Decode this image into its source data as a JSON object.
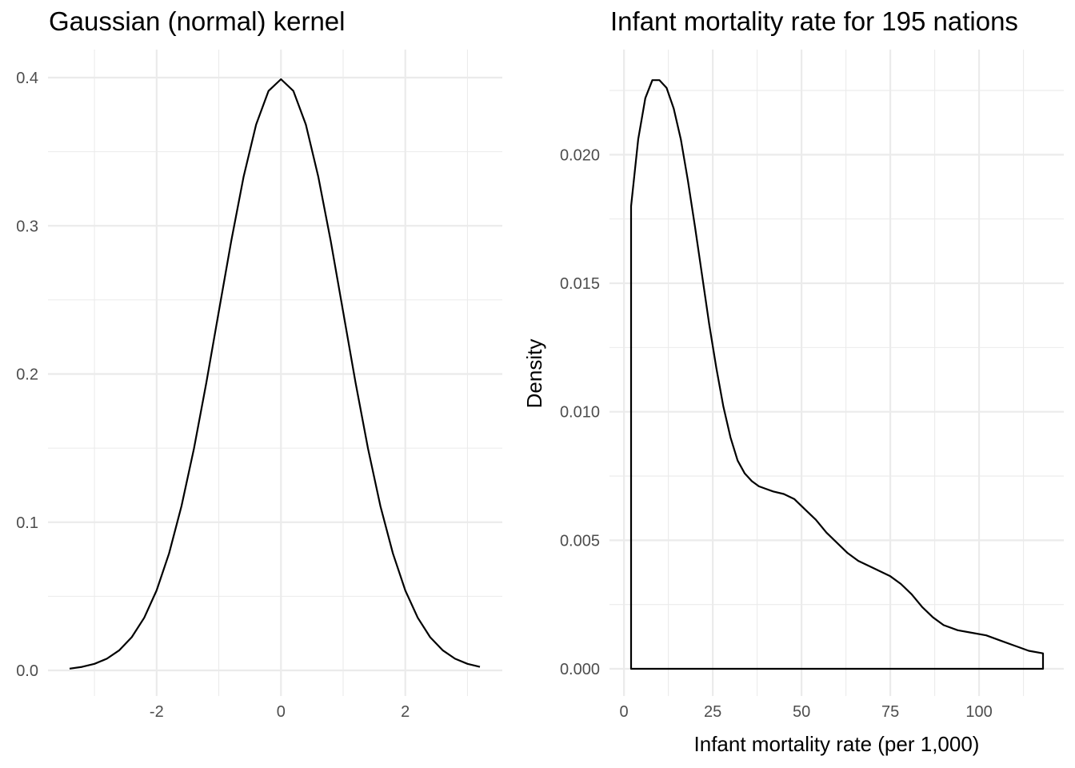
{
  "chart_data": [
    {
      "type": "line",
      "title": "Gaussian (normal) kernel",
      "xlabel": "",
      "ylabel": "",
      "xlim": [
        -3.4,
        3.2
      ],
      "ylim": [
        0,
        0.4
      ],
      "x_ticks": [
        -2,
        0,
        2
      ],
      "x_minor": [
        -3,
        -1,
        1,
        3
      ],
      "y_ticks": [
        0.0,
        0.1,
        0.2,
        0.3,
        0.4
      ],
      "y_minor": [
        0.05,
        0.15,
        0.25,
        0.35
      ],
      "tick_labels_x": [
        "-2",
        "0",
        "2"
      ],
      "tick_labels_y": [
        "0.0",
        "0.1",
        "0.2",
        "0.3",
        "0.4"
      ],
      "grid": true,
      "series": [
        {
          "curve": "standard normal density",
          "x": [
            -3.4,
            -3.2,
            -3.0,
            -2.8,
            -2.6,
            -2.4,
            -2.2,
            -2.0,
            -1.8,
            -1.6,
            -1.4,
            -1.2,
            -1.0,
            -0.8,
            -0.6,
            -0.4,
            -0.2,
            0.0,
            0.2,
            0.4,
            0.6,
            0.8,
            1.0,
            1.2,
            1.4,
            1.6,
            1.8,
            2.0,
            2.2,
            2.4,
            2.6,
            2.8,
            3.0,
            3.2
          ],
          "y": [
            0.0012,
            0.0024,
            0.0044,
            0.0079,
            0.0136,
            0.0224,
            0.0355,
            0.054,
            0.079,
            0.1109,
            0.1497,
            0.1942,
            0.242,
            0.2897,
            0.3332,
            0.3683,
            0.391,
            0.3989,
            0.391,
            0.3683,
            0.3332,
            0.2897,
            0.242,
            0.1942,
            0.1497,
            0.1109,
            0.079,
            0.054,
            0.0355,
            0.0224,
            0.0136,
            0.0079,
            0.0044,
            0.0024
          ]
        }
      ]
    },
    {
      "type": "area",
      "title": "Infant mortality rate for 195 nations",
      "xlabel": "Infant mortality rate (per 1,000)",
      "ylabel": "Density",
      "xlim": [
        2,
        118
      ],
      "ylim": [
        0,
        0.023
      ],
      "x_ticks": [
        0,
        25,
        50,
        75,
        100
      ],
      "x_minor": [
        12.5,
        37.5,
        62.5,
        87.5,
        112.5
      ],
      "y_ticks": [
        0.0,
        0.005,
        0.01,
        0.015,
        0.02
      ],
      "y_minor": [
        0.0025,
        0.0075,
        0.0125,
        0.0175,
        0.0225
      ],
      "tick_labels_x": [
        "0",
        "25",
        "50",
        "75",
        "100"
      ],
      "tick_labels_y": [
        "0.000",
        "0.005",
        "0.010",
        "0.015",
        "0.020"
      ],
      "grid": true,
      "series": [
        {
          "curve": "kernel density estimate",
          "x": [
            2,
            4,
            6,
            8,
            10,
            12,
            14,
            16,
            18,
            20,
            22,
            24,
            26,
            28,
            30,
            32,
            34,
            36,
            38,
            40,
            42,
            45,
            48,
            51,
            54,
            57,
            60,
            63,
            66,
            69,
            72,
            75,
            78,
            81,
            84,
            87,
            90,
            94,
            98,
            102,
            106,
            110,
            114,
            118
          ],
          "y": [
            0.018,
            0.0206,
            0.0222,
            0.0229,
            0.0229,
            0.0226,
            0.0218,
            0.0206,
            0.019,
            0.0172,
            0.0153,
            0.0134,
            0.0117,
            0.0102,
            0.009,
            0.0081,
            0.0076,
            0.0073,
            0.0071,
            0.007,
            0.0069,
            0.0068,
            0.0066,
            0.0062,
            0.0058,
            0.0053,
            0.0049,
            0.0045,
            0.0042,
            0.004,
            0.0038,
            0.0036,
            0.0033,
            0.0029,
            0.0024,
            0.002,
            0.0017,
            0.0015,
            0.0014,
            0.0013,
            0.0011,
            0.0009,
            0.0007,
            0.0006
          ]
        }
      ]
    }
  ]
}
